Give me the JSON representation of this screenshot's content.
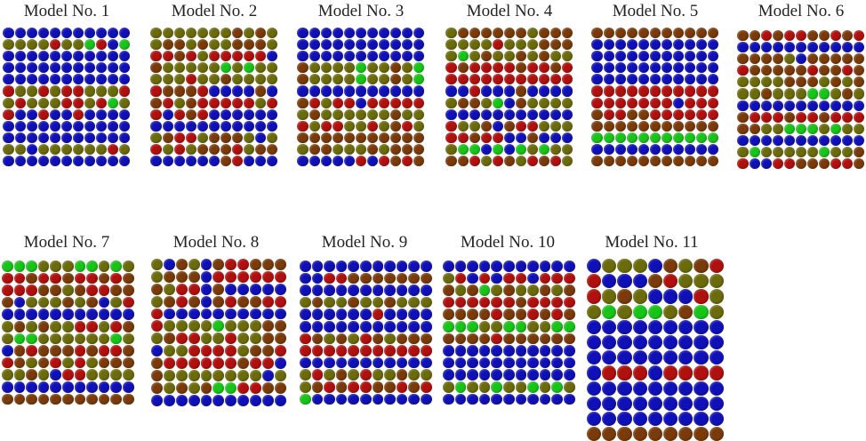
{
  "colors": {
    "B": "#1010b8",
    "R": "#b0100e",
    "G": "#18c418",
    "O": "#6b6b0c",
    "N": "#7a3a0a"
  },
  "models": [
    {
      "title": "Model No. 1",
      "rows": [
        "BBBBBBBBBBB",
        "OOOOROOGRBG",
        "BBBBBBBBBBB",
        "BBBBBBBBBBB",
        "BBBBBBBBBBB",
        "ROORORROOOR",
        "OROOORRORGO",
        "RBBRBBRBBBB",
        "BBBBBBBBBBB",
        "BBBBBBBBBBB",
        "OOBOOOOOORO",
        "BBBBBBBBBBB"
      ]
    },
    {
      "title": "Model No. 2",
      "rows": [
        "OOOOOOONONO",
        "ONNONOONNNO",
        "RRNRORRRRRB",
        "NOOOOOGOGOO",
        "OOOROONOOOO",
        "RNNNRBBBBNB",
        "NRONRRRRROR",
        "RBRNRBBBBBB",
        "BBBBBBBBBBB",
        "ONRRONNNOBO",
        "RORONNNRONN",
        "BBBBBBNRBBB"
      ]
    },
    {
      "title": "Model No. 3",
      "rows": [
        "BBBBBBBBBBB",
        "BBBBBBBBBBB",
        "BBBBBBBBBBB",
        "NOOOOGOONOG",
        "NOOOOGOONOG",
        "BBBBBBBBBBB",
        "NRORRBRRRRR",
        "ONOOOOOONOO",
        "RORROORONRO",
        "NNNNNNNNNNN",
        "ONNOOONONNN",
        "BBBBBRBRNRN"
      ]
    },
    {
      "title": "Model No. 4",
      "rows": [
        "ONNNNNNONNN",
        "OOOOROOONNN",
        "OGONOONONOO",
        "RNRRRRNRRNR",
        "RRRRRRRRRRR",
        "BBRBBBNBBBB",
        "ONNOGBNOOOO",
        "BBBBBBBBBBB",
        "ROONBNRROOO",
        "RRNRRBBNBBB",
        "OGGBGBGOGOO",
        "NNRORNORNRO"
      ]
    },
    {
      "title": "Model No. 5",
      "rows": [
        "NNNNNNNNNNN",
        "BBBBBBBBBBB",
        "BBBBBBBBBBB",
        "BBBBBBBBBBB",
        "BBBBBBBBBBB",
        "RRRRRRRRRRR",
        "RRRRRRRBRRR",
        "NRRNNRRRRRR",
        "NNNNNNNNNNN",
        "GGGGGGGGGGG",
        "BBBBBBBBBBB",
        "NNNNNNNNNNN"
      ]
    },
    {
      "title": "Model No. 6",
      "rows": [
        "NNRNRRNNRNR",
        "BBBBBBBBBBB",
        "NNNNOBNNNNN",
        "RNNNNNRNNRN",
        "OOOONNNONON",
        "OONOOOGGONO",
        "BBBBBBBBBBB",
        "NRRRNRRNRRR",
        "NNOOGGGOGOO",
        "BBBBBBBBBBB",
        "OGOOOOOGOON",
        "RBBRRNNNRRN"
      ]
    },
    {
      "title": "Model No. 7",
      "rows": [
        "GGGOOOGGOGO",
        "RRNRRNRRNRN",
        "RRRNNONRRNN",
        "NBOOONONBOR",
        "BBBBBBBBBBB",
        "ONONOORRORN",
        "OGGOOOOOOGO",
        "BNRNNNRNRRN",
        "RNONRORONNN",
        "OONOBRROOOO",
        "BBBBBBBBBBB",
        "NNNNNNNNNNN"
      ]
    },
    {
      "title": "Model No. 8",
      "rows": [
        "OBNOBNRRNNN",
        "ONNNBRRRRRR",
        "NORRBNBBBBB",
        "ONRNBNRNNRR",
        "RBBBBBBBBBB",
        "ROOOOGOOONN",
        "ONRROOROONN",
        "BOORRRRONNR",
        "NRRRRRRNRRB",
        "NOOOOOOOOBO",
        "NONONGGRRNN",
        "BBBBBBBBBBB"
      ]
    },
    {
      "title": "Model No. 9",
      "rows": [
        "BBBBBBBBBBB",
        "BBRRNNNNNNN",
        "BBBBBBBBBBB",
        "ONOONOONOOO",
        "BBBBBBRBBBB",
        "BBBBBBBBBBB",
        "RNONORNONNN",
        "RRRRRRRRRRR",
        "BBBBBBBBBBB",
        "ORONOROONOO",
        "ONRNRRNNRNR",
        "GBBBBBBBBBB"
      ]
    },
    {
      "title": "Model No. 10",
      "rows": [
        "BBBBBBBBBBB",
        "ORBRBRRBRRR",
        "NONGONOONON",
        "RRRRRRNRRRR",
        "NNNNRNNRNRN",
        "GGGOOGGOOGG",
        "NNNNRNNNNNN",
        "BBBBBBBBBBB",
        "BBBBBBBBBBB",
        "BBBBBBBBBBB",
        "OGOOGOOGOGO",
        "BBBBBBBBBBB"
      ]
    },
    {
      "title": "Model No. 11",
      "rows": [
        "BOOOBNONR",
        "RBBBNROOO",
        "RONOBBBRO",
        "OGOGGONGO",
        "BBBBBBBBB",
        "BBBBBBBBB",
        "BBBBBBBBB",
        "BRRRBRRRR",
        "BBBBBBBBB",
        "BBBBBBBBB",
        "BBBBBBBBB",
        "NNNNNNNNN"
      ]
    }
  ]
}
